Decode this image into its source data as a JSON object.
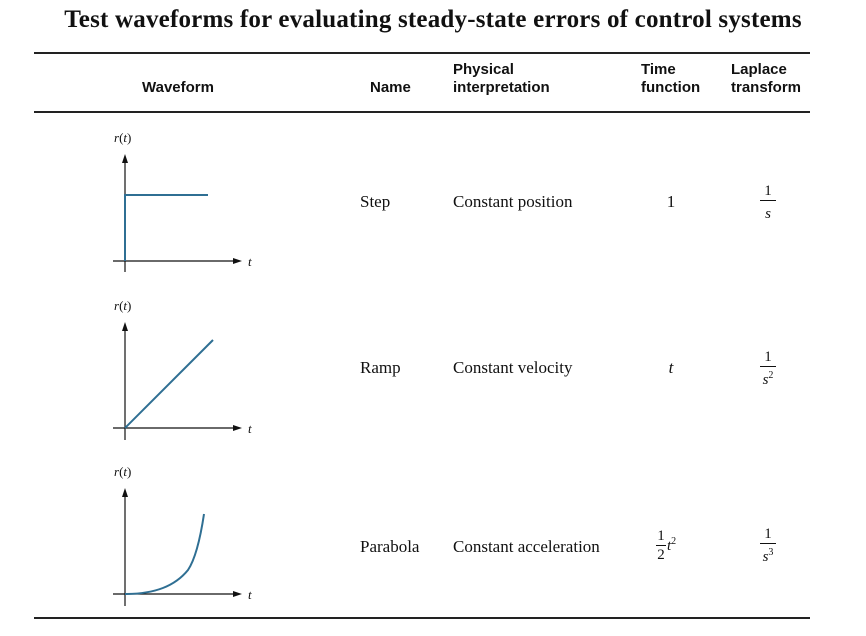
{
  "title": "Test waveforms for evaluating steady-state errors of control systems",
  "headers": {
    "waveform": "Waveform",
    "name": "Name",
    "physical": "Physical\ninterpretation",
    "time": "Time\nfunction",
    "laplace": "Laplace\ntransform"
  },
  "rows": [
    {
      "name": "Step",
      "physical": "Constant position",
      "time": "1",
      "laplace": {
        "num": "1",
        "den": "s",
        "exp": ""
      },
      "plot": {
        "ylabel": "r(t)",
        "xlabel": "t"
      }
    },
    {
      "name": "Ramp",
      "physical": "Constant velocity",
      "time": "t",
      "laplace": {
        "num": "1",
        "den": "s",
        "exp": "2"
      },
      "plot": {
        "ylabel": "r(t)",
        "xlabel": "t"
      }
    },
    {
      "name": "Parabola",
      "physical": "Constant acceleration",
      "time": {
        "num": "1",
        "den": "2",
        "var": "t",
        "exp": "2"
      },
      "laplace": {
        "num": "1",
        "den": "s",
        "exp": "3"
      },
      "plot": {
        "ylabel": "r(t)",
        "xlabel": "t"
      }
    }
  ],
  "colors": {
    "waveform": "#2f6f93",
    "axes": "#111111"
  }
}
